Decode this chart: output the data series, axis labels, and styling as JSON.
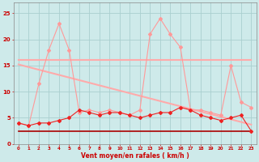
{
  "x": [
    0,
    1,
    2,
    3,
    4,
    5,
    6,
    7,
    8,
    9,
    10,
    11,
    12,
    13,
    14,
    15,
    16,
    17,
    18,
    19,
    20,
    21,
    22,
    23
  ],
  "wind_avg": [
    4,
    3.5,
    4,
    4,
    4.5,
    5,
    6.5,
    6,
    5.5,
    6,
    6,
    5.5,
    5,
    5.5,
    6,
    6,
    7,
    6.5,
    5.5,
    5,
    4.5,
    5,
    5.5,
    2.5
  ],
  "wind_gust": [
    4,
    3.5,
    11.5,
    18,
    23,
    18,
    6,
    6.5,
    6,
    6.5,
    6,
    5.5,
    6.5,
    21,
    24,
    21,
    18.5,
    6.5,
    6.5,
    6,
    5.5,
    15,
    8,
    7
  ],
  "trend_line_high": [
    16.0,
    16.0,
    16.0,
    16.0,
    16.0,
    16.0,
    16.0,
    16.0,
    16.0,
    16.0,
    16.0,
    16.0,
    16.0,
    16.0,
    16.0,
    16.0,
    16.0,
    16.0,
    16.0,
    16.0,
    16.0,
    16.0,
    16.0,
    16.0
  ],
  "trend_line_low": [
    15.2,
    14.7,
    14.2,
    13.7,
    13.2,
    12.7,
    12.2,
    11.7,
    11.2,
    10.7,
    10.2,
    9.7,
    9.2,
    8.7,
    8.2,
    7.7,
    7.2,
    6.7,
    6.2,
    5.7,
    5.2,
    4.7,
    4.2,
    3.7
  ],
  "const_line": [
    2.5,
    2.5,
    2.5,
    2.5,
    2.5,
    2.5,
    2.5,
    2.5,
    2.5,
    2.5,
    2.5,
    2.5,
    2.5,
    2.5,
    2.5,
    2.5,
    2.5,
    2.5,
    2.5,
    2.5,
    2.5,
    2.5,
    2.5,
    2.5
  ],
  "bg_color": "#ceeaea",
  "grid_color": "#aacfcf",
  "line_avg_color": "#ee2222",
  "line_gust_color": "#ff9999",
  "line_trend_high_color": "#ffaaaa",
  "line_trend_low_color": "#ffaaaa",
  "line_const_color": "#aa0000",
  "xlabel": "Vent moyen/en rafales ( km/h )",
  "ylim": [
    0,
    27
  ],
  "yticks": [
    0,
    5,
    10,
    15,
    20,
    25
  ],
  "xticks": [
    0,
    1,
    2,
    3,
    4,
    5,
    6,
    7,
    8,
    9,
    10,
    11,
    12,
    13,
    14,
    15,
    16,
    17,
    18,
    19,
    20,
    21,
    22,
    23
  ]
}
